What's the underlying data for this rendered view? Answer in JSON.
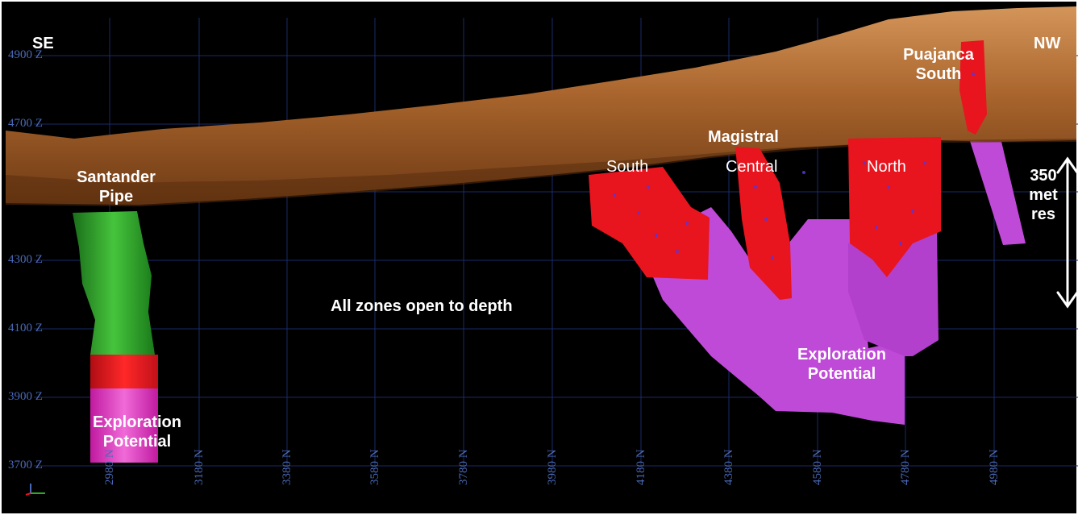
{
  "labels": {
    "se": "SE",
    "nw": "NW",
    "santander_line1": "Santander",
    "santander_line2": "Pipe",
    "exploration_left_line1": "Exploration",
    "exploration_left_line2": "Potential",
    "all_zones": "All zones open to depth",
    "south": "South",
    "magistral": "Magistral",
    "central": "Central",
    "north": "North",
    "puajanca_line1": "Puajanca",
    "puajanca_line2": "South",
    "exploration_right_line1": "Exploration",
    "exploration_right_line2": "Potential",
    "scale_line1": "350",
    "scale_line2": "met",
    "scale_line3": "res"
  },
  "elevation_ticks": [
    "4900 Z",
    "4700 Z",
    "4300 Z",
    "4100 Z",
    "3900 Z",
    "3700 Z"
  ],
  "northing_ticks": [
    "2980 N",
    "3180 N",
    "3380 N",
    "3580 N",
    "3780 N",
    "3980 N",
    "4180 N",
    "4380 N",
    "4580 N",
    "4780 N",
    "4980 N"
  ],
  "colors": {
    "background": "#000000",
    "topography": "#a0602a",
    "orebody": "#e8141e",
    "santander_pipe": "#2ea82a",
    "exploration_potential": "#c04ad8",
    "grid": "#1a2a6a",
    "axis_text": "#4a6ab8"
  }
}
